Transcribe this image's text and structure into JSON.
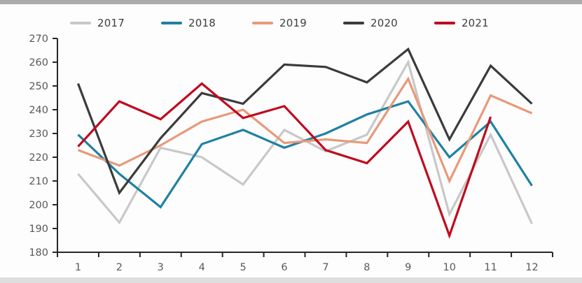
{
  "page": {
    "background": "#fdfdfd",
    "top_bar_color": "#ababab",
    "bottom_bar_color": "#dedede"
  },
  "legend": {
    "position": "top",
    "items": [
      {
        "label": "2017",
        "color": "#c8c8c8"
      },
      {
        "label": "2018",
        "color": "#1f81a3"
      },
      {
        "label": "2019",
        "color": "#e8997a"
      },
      {
        "label": "2020",
        "color": "#3b3b3b"
      },
      {
        "label": "2021",
        "color": "#c00a1e"
      }
    ]
  },
  "chart_data": {
    "type": "line",
    "title": "",
    "xlabel": "",
    "ylabel": "",
    "categories": [
      1,
      2,
      3,
      4,
      5,
      6,
      7,
      8,
      9,
      10,
      11,
      12
    ],
    "series": [
      {
        "name": "2017",
        "color": "#c8c8c8",
        "values": [
          213,
          192.5,
          224,
          220,
          208.5,
          231.5,
          222.5,
          229.5,
          260,
          196,
          229.5,
          192
        ]
      },
      {
        "name": "2018",
        "color": "#1f81a3",
        "values": [
          229.5,
          213,
          199,
          225.5,
          231.5,
          224,
          230,
          238,
          243.5,
          220,
          235,
          208
        ]
      },
      {
        "name": "2019",
        "color": "#e8997a",
        "values": [
          223,
          216.5,
          225,
          235,
          240,
          226,
          227.5,
          226,
          253,
          210,
          246,
          238.5
        ]
      },
      {
        "name": "2020",
        "color": "#3b3b3b",
        "values": [
          251,
          205,
          228,
          247,
          242.5,
          259,
          258,
          251.5,
          265.5,
          227.5,
          258.5,
          242.5
        ]
      },
      {
        "name": "2021",
        "color": "#c00a1e",
        "values": [
          224.5,
          243.5,
          236,
          251,
          236.5,
          241.5,
          223,
          217.5,
          235,
          187,
          237,
          null
        ]
      }
    ],
    "ylim": [
      180,
      270
    ],
    "ytick_step": 10,
    "ytick_labels": [
      "180",
      "190",
      "200",
      "210",
      "220",
      "230",
      "240",
      "250",
      "260",
      "270"
    ],
    "xtick_labels": [
      "1",
      "2",
      "3",
      "4",
      "5",
      "6",
      "7",
      "8",
      "9",
      "10",
      "11",
      "12"
    ],
    "grid": false,
    "legend_position": "top",
    "axis_color": "#262626",
    "tick_label_color": "#595959",
    "line_width": 3.2
  }
}
